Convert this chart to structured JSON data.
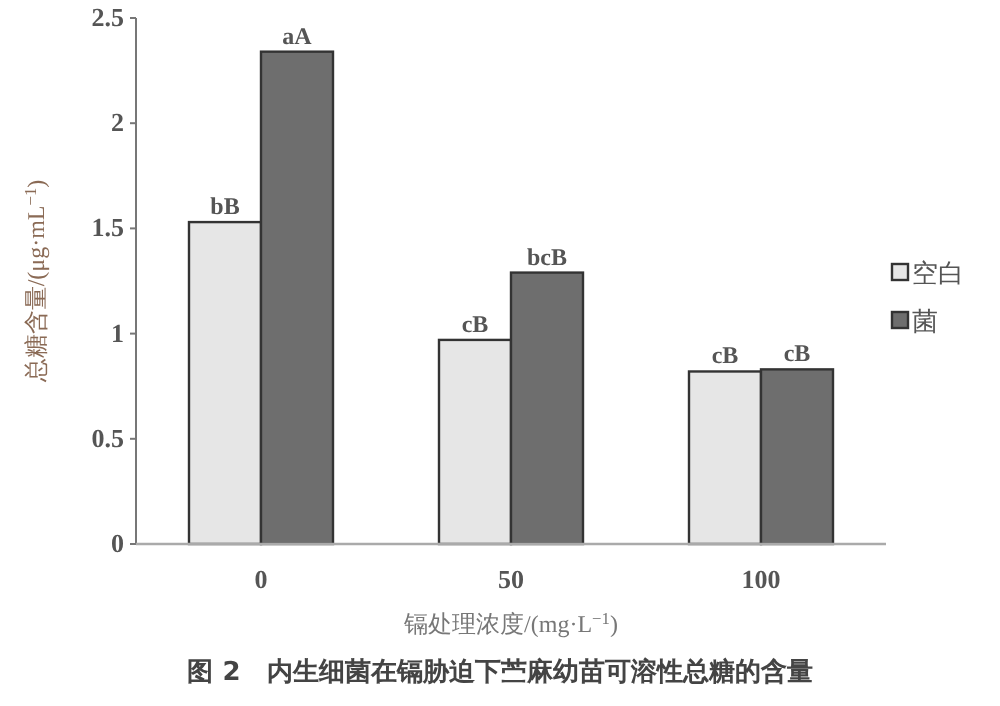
{
  "chart_data": {
    "type": "bar",
    "title": "图 2　内生细菌在镉胁迫下苎麻幼苗可溶性总糖的含量",
    "xlabel": "镉处理浓度/(mg·L$^{−1}$)",
    "ylabel": "总糖含量/(μg·mL$^{−1}$)",
    "categories": [
      "0",
      "50",
      "100"
    ],
    "series": [
      {
        "name": "空白",
        "color": "#e6e6e6",
        "values": [
          1.53,
          0.97,
          0.82
        ],
        "value_labels": [
          "bB",
          "cB",
          "cB"
        ]
      },
      {
        "name": "菌",
        "color": "#6e6e6e",
        "values": [
          2.34,
          1.29,
          0.83
        ],
        "value_labels": [
          "aA",
          "bcB",
          "cB"
        ]
      }
    ],
    "ylim": [
      0,
      2.5
    ],
    "yticks": [
      0,
      0.5,
      1,
      1.5,
      2,
      2.5
    ],
    "legend": "right",
    "grid": false
  }
}
